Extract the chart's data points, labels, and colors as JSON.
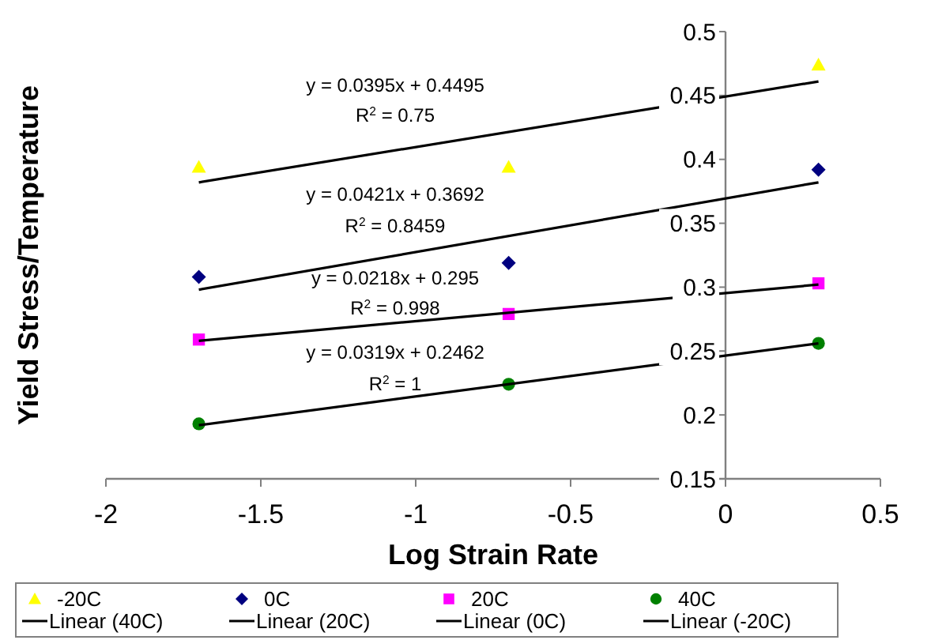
{
  "chart_data": {
    "type": "scatter",
    "xlabel": "Log Strain Rate",
    "ylabel": "Yield Stress/Temperature",
    "xlim": [
      -2,
      0.5
    ],
    "xticks": [
      -2,
      -1.5,
      -1,
      -0.5,
      0,
      0.5
    ],
    "ylim": [
      0.15,
      0.5
    ],
    "yticks": [
      0.15,
      0.2,
      0.25,
      0.3,
      0.35,
      0.4,
      0.45,
      0.5
    ],
    "grid": false,
    "legend": "bottom",
    "series": [
      {
        "name": "-20C",
        "marker": "triangle",
        "color": "#ffff00",
        "x": [
          -1.7,
          -0.7,
          0.3
        ],
        "values": [
          0.394,
          0.394,
          0.474
        ]
      },
      {
        "name": "0C",
        "marker": "diamond",
        "color": "#000080",
        "x": [
          -1.7,
          -0.7,
          0.3
        ],
        "values": [
          0.308,
          0.319,
          0.392
        ]
      },
      {
        "name": "20C",
        "marker": "square",
        "color": "#ff00ff",
        "x": [
          -1.7,
          -0.7,
          0.3
        ],
        "values": [
          0.259,
          0.279,
          0.303
        ]
      },
      {
        "name": "40C",
        "marker": "circle",
        "color": "#008000",
        "x": [
          -1.7,
          -0.7,
          0.3
        ],
        "values": [
          0.193,
          0.224,
          0.256
        ]
      },
      {
        "name": "Linear (40C)",
        "type": "line",
        "marker": "none",
        "color": "#000000",
        "x": [
          -1.7,
          0.3
        ],
        "values": [
          0.192,
          0.256
        ]
      },
      {
        "name": "Linear (20C)",
        "type": "line",
        "marker": "none",
        "color": "#000000",
        "x": [
          -1.7,
          0.3
        ],
        "values": [
          0.258,
          0.302
        ]
      },
      {
        "name": "Linear (0C)",
        "type": "line",
        "marker": "none",
        "color": "#000000",
        "x": [
          -1.7,
          0.3
        ],
        "values": [
          0.298,
          0.382
        ]
      },
      {
        "name": "Linear (-20C)",
        "type": "line",
        "marker": "none",
        "color": "#000000",
        "x": [
          -1.7,
          0.3
        ],
        "values": [
          0.382,
          0.461
        ]
      }
    ],
    "annotations": [
      "y = 0.0395x + 0.4495",
      "R$^{2}$ = 0.75",
      "y = 0.0421x + 0.3692",
      "R$^{2}$ = 0.8459",
      "y = 0.0218x + 0.295",
      "R$^{2}$ = 0.998",
      "y = 0.0319x + 0.2462",
      "R$^{2}$ = 1"
    ]
  }
}
